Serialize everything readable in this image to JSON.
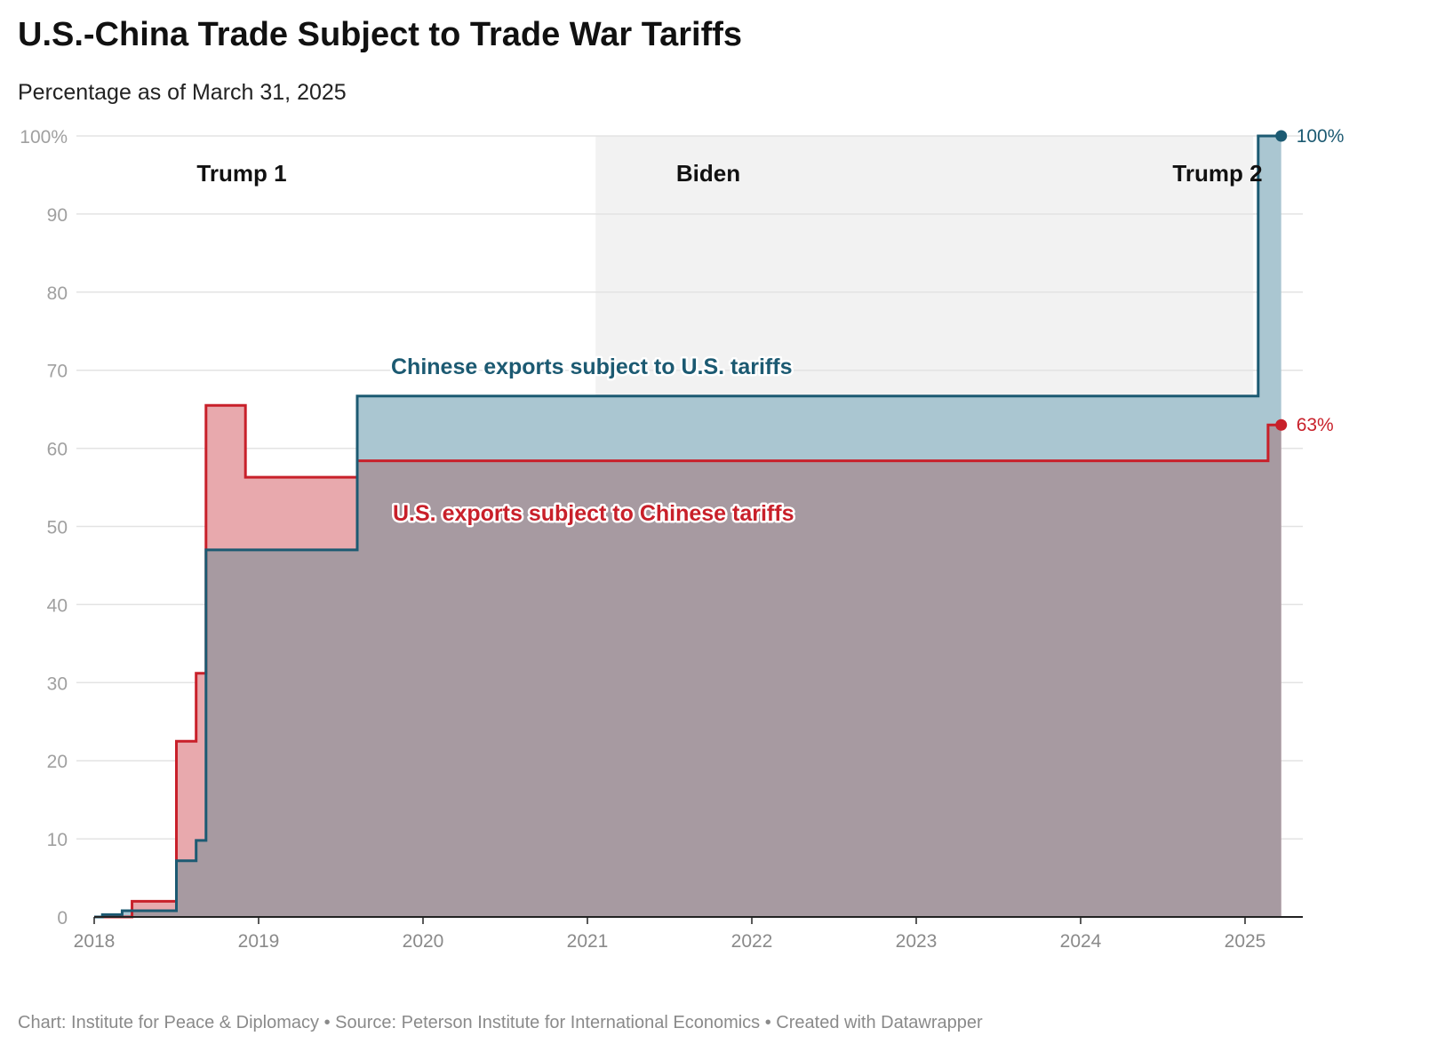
{
  "header": {
    "title": "U.S.-China Trade Subject to Trade War Tariffs",
    "subtitle": "Percentage as of March 31, 2025"
  },
  "footer": {
    "text": "Chart: Institute for Peace & Diplomacy • Source: Peterson Institute for International Economics • Created with Datawrapper"
  },
  "colors": {
    "china_series": "#1c5a72",
    "china_fill": "#aac6d1",
    "us_series": "#c8202a",
    "us_fill": "#e8a9ad",
    "overlap_fill": "#a79aa1",
    "biden_shade": "#f2f2f2"
  },
  "chart_data": {
    "type": "area",
    "xlim": [
      2018.0,
      2025.25
    ],
    "ylim": [
      0,
      100
    ],
    "yticks": [
      {
        "value": 0,
        "label": "0"
      },
      {
        "value": 10,
        "label": "10"
      },
      {
        "value": 20,
        "label": "20"
      },
      {
        "value": 30,
        "label": "30"
      },
      {
        "value": 40,
        "label": "40"
      },
      {
        "value": 50,
        "label": "50"
      },
      {
        "value": 60,
        "label": "60"
      },
      {
        "value": 70,
        "label": "70"
      },
      {
        "value": 80,
        "label": "80"
      },
      {
        "value": 90,
        "label": "90"
      },
      {
        "value": 100,
        "label": "100%"
      }
    ],
    "xticks": [
      {
        "value": 2018,
        "label": "2018"
      },
      {
        "value": 2019,
        "label": "2019"
      },
      {
        "value": 2020,
        "label": "2020"
      },
      {
        "value": 2021,
        "label": "2021"
      },
      {
        "value": 2022,
        "label": "2022"
      },
      {
        "value": 2023,
        "label": "2023"
      },
      {
        "value": 2024,
        "label": "2024"
      },
      {
        "value": 2025,
        "label": "2025"
      }
    ],
    "grid": true,
    "periods": [
      {
        "label": "Trump 1",
        "start": 2018.0,
        "end": 2021.05,
        "shaded": false
      },
      {
        "label": "Biden",
        "start": 2021.05,
        "end": 2025.05,
        "shaded": true
      },
      {
        "label": "Trump 2",
        "start": 2025.05,
        "end": 2025.25,
        "shaded": false
      }
    ],
    "series": [
      {
        "name": "Chinese exports subject to U.S. tariffs",
        "end_label": "100%",
        "step_points": [
          [
            2018.0,
            0
          ],
          [
            2018.05,
            0.3
          ],
          [
            2018.17,
            0.8
          ],
          [
            2018.5,
            7.2
          ],
          [
            2018.62,
            9.8
          ],
          [
            2018.68,
            47
          ],
          [
            2019.6,
            66.7
          ],
          [
            2025.08,
            100
          ],
          [
            2025.22,
            100
          ]
        ]
      },
      {
        "name": "U.S. exports subject to Chinese tariffs",
        "end_label": "63%",
        "step_points": [
          [
            2018.0,
            0
          ],
          [
            2018.23,
            2
          ],
          [
            2018.5,
            22.5
          ],
          [
            2018.62,
            31.2
          ],
          [
            2018.68,
            65.5
          ],
          [
            2018.92,
            56.3
          ],
          [
            2019.6,
            58.4
          ],
          [
            2025.14,
            63
          ],
          [
            2025.22,
            63
          ]
        ]
      }
    ]
  }
}
